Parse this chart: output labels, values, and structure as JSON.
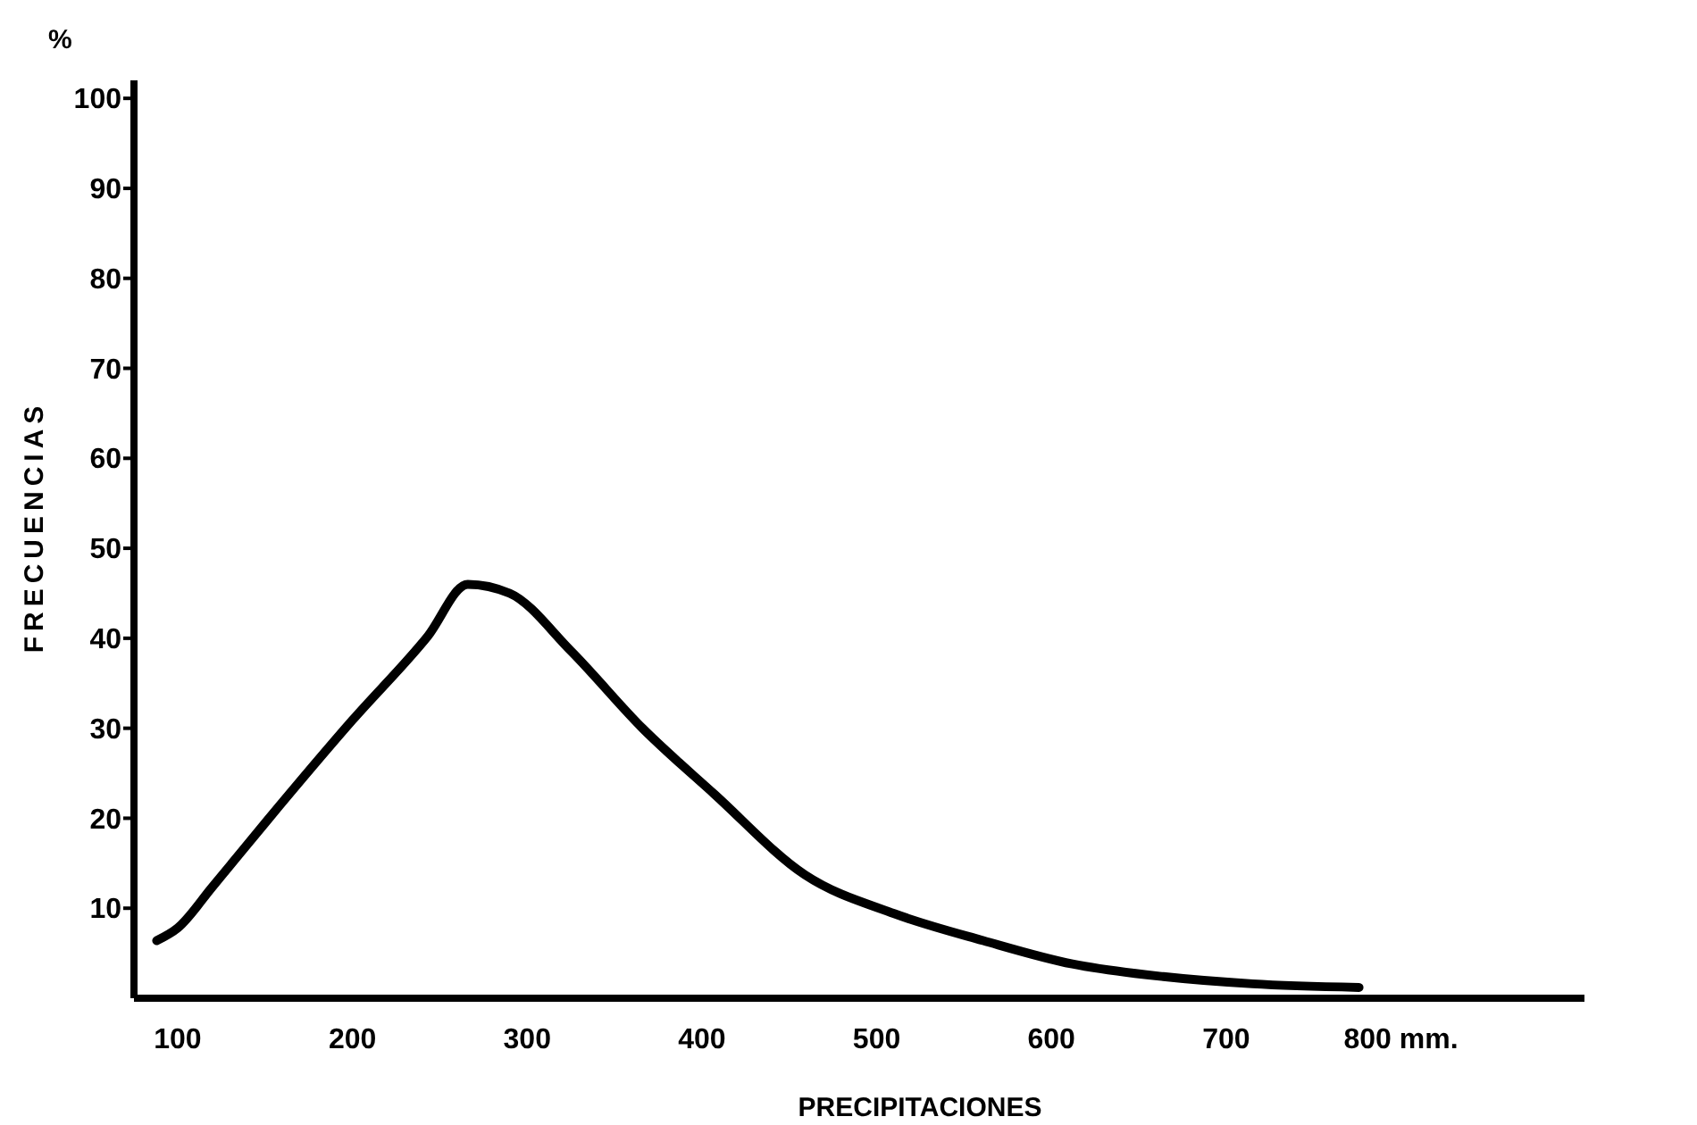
{
  "chart_data": {
    "type": "line",
    "xlabel": "PRECIPITACIONES",
    "ylabel": "FRECUENCIAS",
    "annotations": [
      "%"
    ],
    "x": [
      88,
      100,
      120,
      151,
      200,
      243,
      266,
      290,
      325,
      366,
      407,
      459,
      510,
      561,
      612,
      664,
      715,
      776
    ],
    "series": [
      {
        "color": "#000000",
        "values": [
          6.4,
          7.8,
          12.4,
          19.7,
          30.9,
          40.2,
          46,
          45,
          38.6,
          30,
          22.7,
          13.7,
          9.4,
          6.4,
          3.8,
          2.4,
          1.6,
          1.2
        ]
      }
    ],
    "xlim": [
      75,
      905
    ],
    "xticks": [
      100,
      200,
      300,
      400,
      500,
      600,
      700,
      {
        "value": 800,
        "label": "800 mm."
      }
    ],
    "ylim": [
      0,
      102
    ],
    "yticks": [
      10,
      20,
      30,
      40,
      50,
      60,
      70,
      80,
      90,
      100
    ],
    "grid": false,
    "marker": "none",
    "line_style": "solid"
  }
}
